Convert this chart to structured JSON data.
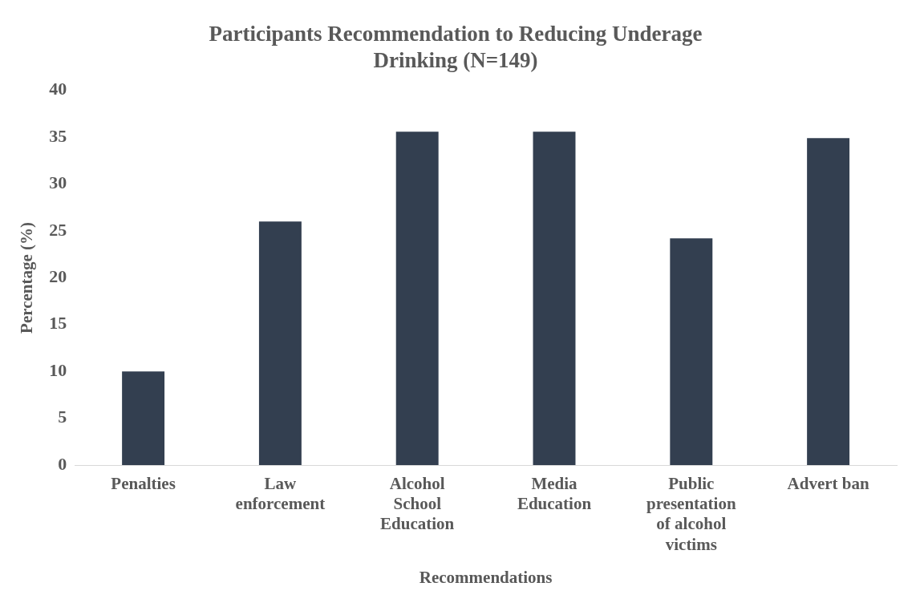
{
  "chart_data": {
    "type": "bar",
    "title": "Participants Recommendation to Reducing Underage Drinking (N=149)",
    "xlabel": "Recommendations",
    "ylabel": "Percentage (%)",
    "categories": [
      "Penalties",
      "Law enforcement",
      "Alcohol School Education",
      "Media Education",
      "Public presentation of alcohol victims",
      "Advert ban"
    ],
    "values": [
      10,
      26,
      35.6,
      35.6,
      24.2,
      34.9
    ],
    "color": "#333f50",
    "ylim": [
      0,
      40
    ],
    "yticks": [
      0,
      5,
      10,
      15,
      20,
      25,
      30,
      35,
      40
    ],
    "grid": false,
    "legend": false
  }
}
